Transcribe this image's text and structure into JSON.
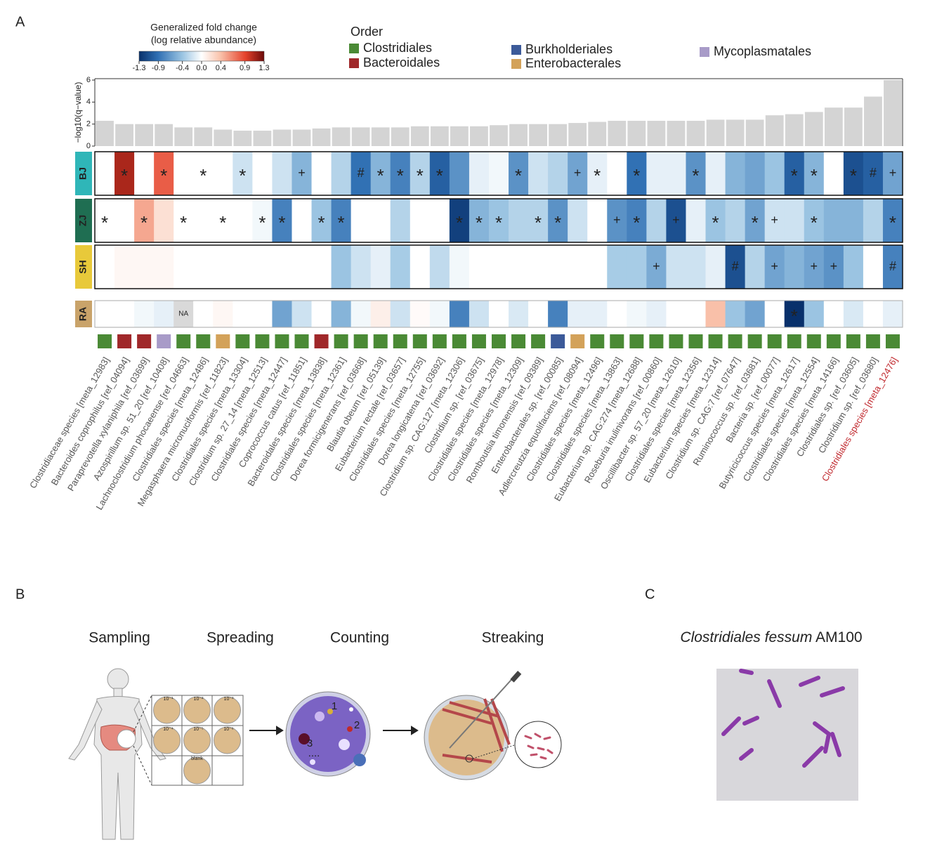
{
  "chart_data": [
    {
      "type": "bar",
      "y_label": "−log10(q−value)",
      "categories": [
        "Clostridiaceae species [meta_12983]",
        "Bacteroides coprophilus [ref_04094]",
        "Paraprevotella xylaniphila [ref_03699]",
        "Azospirillum sp. 51_20 [ref_10408]",
        "Lachnoclostridium phocaeense [ref_04663]",
        "Clostridiales species [meta_12486]",
        "Megasphaera micronuciformis [ref_11823]",
        "Clostridiales species [meta_13304]",
        "Clostridium sp. 27_14 [meta_12513]",
        "Clostridiales species [meta_12447]",
        "Coprococcus catus [ref_11851]",
        "Bacteroidales species [meta_13838]",
        "Clostridiales species [meta_12361]",
        "Dorea formicigenerans [ref_03668]",
        "Blautia obeum [ref_05139]",
        "Eubacterium rectale [ref_03657]",
        "Clostridiales species [meta_12755]",
        "Dorea longicatena [ref_03692]",
        "Clostridium sp. CAG:127 [meta_12306]",
        "Clostridium sp. [ref_03675]",
        "Clostridiales species [meta_12978]",
        "Clostridiales species [meta_12309]",
        "Romboutsia timonensis [ref_09389]",
        "Enterobacterales sp. [ref_00085]",
        "Adlercreutzia equolifaciens [ref_08094]",
        "Clostridiales species [meta_12496]",
        "Clostridiales species [meta_13863]",
        "Eubacterium sp. CAG:274 [meta_12688]",
        "Roseburia inulinivorans [ref_00860]",
        "Oscillibacter sp. 57_20 [meta_12610]",
        "Clostridiales species [meta_12356]",
        "Eubacterium species [meta_12314]",
        "Clostridium sp. CAG:7 [ref_07647]",
        "Ruminococcus sp. [ref_03681]",
        "Bacteria sp. [ref_00077]",
        "Butyricicoccus species [meta_12617]",
        "Clostridiales species [meta_12554]",
        "Clostridiales species [meta_14166]",
        "Clostridiales sp. [ref_03605]",
        "Clostridium sp. [ref_03680]",
        "Clostridiales species [meta_12476]"
      ],
      "values": [
        2.3,
        2.0,
        2.0,
        2.0,
        1.7,
        1.7,
        1.5,
        1.4,
        1.4,
        1.5,
        1.5,
        1.6,
        1.7,
        1.7,
        1.7,
        1.7,
        1.8,
        1.8,
        1.8,
        1.8,
        1.9,
        2.0,
        2.0,
        2.0,
        2.1,
        2.2,
        2.3,
        2.3,
        2.3,
        2.3,
        2.3,
        2.4,
        2.4,
        2.4,
        2.8,
        2.9,
        3.1,
        3.5,
        3.5,
        4.5,
        6.0
      ],
      "color": "#d4d4d4",
      "ylim": [
        0,
        6
      ],
      "yticks": [
        0,
        2,
        4,
        6
      ],
      "highlight_index": 40,
      "highlight_color": "#c0282d"
    },
    {
      "type": "heatmap",
      "colorbar": {
        "title": "Generalized fold change",
        "subtitle": "(log relative abundance)",
        "lim": [
          -1.3,
          1.3
        ],
        "ticks": [
          -1.3,
          -0.9,
          -0.4,
          {
            "value": 0,
            "label": "0.0"
          },
          0.4,
          0.9,
          1.3
        ]
      },
      "na_label": "NA",
      "rows": [
        {
          "name": "BJ",
          "color": "#2fb6b8",
          "values": [
            0,
            1.1,
            0,
            0.8,
            0,
            0,
            0,
            -0.2,
            0,
            -0.2,
            -0.5,
            0,
            -0.3,
            -0.9,
            -0.5,
            -0.8,
            -0.3,
            -1.0,
            -0.7,
            -0.1,
            -0.05,
            -0.7,
            -0.2,
            -0.3,
            -0.6,
            -0.1,
            0,
            -0.9,
            -0.1,
            -0.1,
            -0.7,
            -0.1,
            -0.5,
            -0.6,
            -0.4,
            -1.0,
            -0.5,
            0,
            -1.1,
            -1.0,
            -0.6
          ],
          "marks": [
            null,
            "*",
            null,
            "*",
            null,
            "*",
            null,
            "*",
            null,
            null,
            "+",
            null,
            null,
            "#",
            "*",
            "*",
            "*",
            "*",
            null,
            null,
            null,
            "*",
            null,
            null,
            "+",
            "*",
            null,
            "*",
            null,
            null,
            "*",
            null,
            null,
            null,
            null,
            "*",
            "*",
            null,
            "*",
            "#",
            "+"
          ]
        },
        {
          "name": "ZJ",
          "color": "#1f6e52",
          "values": [
            0,
            0,
            0.5,
            0.2,
            0,
            0,
            0,
            0,
            -0.05,
            -0.8,
            0,
            -0.4,
            -0.8,
            0,
            0,
            -0.3,
            0,
            0,
            -1.2,
            -0.5,
            -0.4,
            -0.3,
            -0.3,
            -0.7,
            -0.2,
            0,
            -0.7,
            -0.8,
            -0.3,
            -1.1,
            -0.1,
            -0.4,
            -0.3,
            -0.6,
            -0.2,
            -0.2,
            -0.4,
            -0.5,
            -0.5,
            -0.3,
            -0.8
          ],
          "marks": [
            "*",
            null,
            "*",
            null,
            "*",
            null,
            "*",
            null,
            "*",
            "*",
            null,
            "*",
            "*",
            null,
            null,
            null,
            null,
            null,
            "*",
            "*",
            "*",
            null,
            "*",
            "*",
            null,
            null,
            "+",
            "*",
            null,
            "+",
            null,
            "*",
            null,
            "*",
            "+",
            null,
            "*",
            null,
            null,
            null,
            "*"
          ]
        },
        {
          "name": "SH",
          "color": "#e8c93a",
          "values": [
            0,
            0.05,
            0.05,
            0.05,
            0,
            0,
            0,
            0,
            0,
            0,
            0,
            0,
            -0.4,
            -0.2,
            -0.1,
            -0.35,
            0,
            -0.25,
            -0.05,
            0,
            0,
            0,
            0,
            0,
            0,
            0,
            -0.35,
            -0.35,
            -0.55,
            -0.2,
            -0.2,
            -0.1,
            -1.1,
            -0.3,
            -0.6,
            -0.5,
            -0.6,
            -0.7,
            -0.4,
            0,
            -0.8
          ],
          "marks": [
            null,
            null,
            null,
            null,
            null,
            null,
            null,
            null,
            null,
            null,
            null,
            null,
            null,
            null,
            null,
            null,
            null,
            null,
            null,
            null,
            null,
            null,
            null,
            null,
            null,
            null,
            null,
            null,
            "+",
            null,
            null,
            null,
            "#",
            null,
            "+",
            null,
            "+",
            "+",
            null,
            null,
            "#"
          ]
        },
        {
          "name": "RA",
          "color": "#c9a36a",
          "values": [
            0,
            0,
            -0.05,
            -0.1,
            null,
            0,
            0.05,
            0,
            0,
            -0.6,
            -0.2,
            0,
            -0.5,
            -0.05,
            0.1,
            -0.2,
            0.03,
            -0.05,
            -0.8,
            -0.2,
            0,
            -0.15,
            0,
            -0.8,
            -0.1,
            -0.1,
            0,
            -0.05,
            -0.1,
            0,
            0,
            0.4,
            -0.4,
            -0.6,
            0,
            -1.3,
            -0.4,
            0,
            -0.15,
            0,
            -0.1
          ],
          "marks": [
            null,
            null,
            null,
            null,
            null,
            null,
            null,
            null,
            null,
            null,
            null,
            null,
            null,
            null,
            null,
            null,
            null,
            null,
            null,
            null,
            null,
            null,
            null,
            null,
            null,
            null,
            null,
            null,
            null,
            null,
            null,
            null,
            null,
            null,
            null,
            "*",
            null,
            null,
            null,
            null,
            null
          ]
        }
      ],
      "order_legend": {
        "title": "Order",
        "items": [
          {
            "name": "Clostridiales",
            "color": "#4a8a35"
          },
          {
            "name": "Bacteroidales",
            "color": "#a0282a"
          },
          {
            "name": "Burkholderiales",
            "color": "#3c5a99"
          },
          {
            "name": "Enterobacterales",
            "color": "#d3a25a"
          },
          {
            "name": "Mycoplasmatales",
            "color": "#a89bc8"
          }
        ]
      },
      "order": [
        0,
        1,
        1,
        4,
        0,
        0,
        3,
        0,
        0,
        0,
        0,
        1,
        0,
        0,
        0,
        0,
        0,
        0,
        0,
        0,
        0,
        0,
        0,
        2,
        3,
        0,
        0,
        0,
        0,
        0,
        0,
        0,
        0,
        0,
        0,
        0,
        0,
        0,
        0,
        0,
        0
      ]
    }
  ],
  "panel_labels": [
    "A",
    "B",
    "C"
  ],
  "panel_b": {
    "steps": [
      "Sampling",
      "Spreading",
      "Counting",
      "Streaking"
    ],
    "dilutions": [
      "10⁻¹",
      "10⁻²",
      "10⁻³",
      "10⁻⁴",
      "10⁻⁵",
      "10⁻⁶"
    ],
    "blank": "blank",
    "colonies": [
      "1",
      "2",
      "3",
      "...."
    ]
  },
  "panel_c": {
    "species": "Clostridiales fessum",
    "strain": "AM100"
  }
}
